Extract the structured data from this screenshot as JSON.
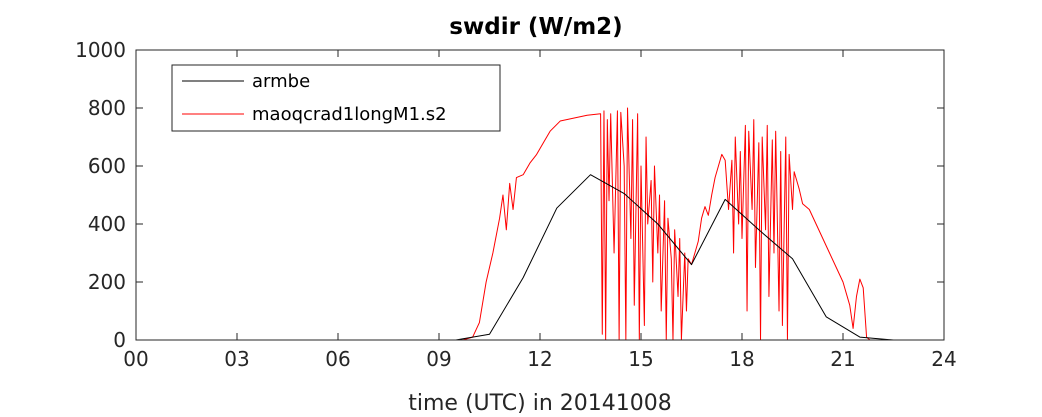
{
  "chart_data": {
    "type": "line",
    "title": "swdir  (W/m2)",
    "xlabel": "time (UTC) in 20141008",
    "ylabel": "",
    "xlim": [
      0,
      24
    ],
    "ylim": [
      0,
      1000
    ],
    "xticks": [
      0,
      3,
      6,
      9,
      12,
      15,
      18,
      21,
      24
    ],
    "xtick_labels": [
      "00",
      "03",
      "06",
      "09",
      "12",
      "15",
      "18",
      "21",
      "24"
    ],
    "yticks": [
      0,
      200,
      400,
      600,
      800,
      1000
    ],
    "ytick_labels": [
      "0",
      "200",
      "400",
      "600",
      "800",
      "1000"
    ],
    "grid": false,
    "legend": "top-left",
    "series": [
      {
        "name": "armbe",
        "color": "#000000",
        "x": [
          0,
          9.5,
          10.5,
          11.5,
          12.5,
          13.5,
          14.5,
          15.5,
          16.5,
          17.5,
          18.5,
          19.5,
          20.5,
          21.5,
          22.5,
          24
        ],
        "y": [
          0,
          0,
          20,
          215,
          455,
          570,
          505,
          400,
          260,
          485,
          380,
          280,
          80,
          10,
          0,
          0
        ]
      },
      {
        "name": "maoqcrad1longM1.s2",
        "color": "#ff0000",
        "x": [
          0,
          9.7,
          10.0,
          10.2,
          10.4,
          10.6,
          10.8,
          10.9,
          11.0,
          11.1,
          11.2,
          11.3,
          11.5,
          11.7,
          11.9,
          12.1,
          12.3,
          12.6,
          13.0,
          13.4,
          13.8,
          13.85,
          13.9,
          13.95,
          14.0,
          14.05,
          14.1,
          14.2,
          14.3,
          14.35,
          14.4,
          14.5,
          14.55,
          14.6,
          14.7,
          14.75,
          14.8,
          14.9,
          14.95,
          15.0,
          15.1,
          15.15,
          15.2,
          15.3,
          15.35,
          15.4,
          15.5,
          15.55,
          15.6,
          15.7,
          15.75,
          15.8,
          15.9,
          15.95,
          16.0,
          16.1,
          16.15,
          16.2,
          16.3,
          16.35,
          16.4,
          16.5,
          16.6,
          16.7,
          16.8,
          16.9,
          17.0,
          17.1,
          17.2,
          17.3,
          17.4,
          17.5,
          17.6,
          17.7,
          17.75,
          17.8,
          17.9,
          17.95,
          18.0,
          18.1,
          18.15,
          18.2,
          18.3,
          18.35,
          18.4,
          18.5,
          18.55,
          18.6,
          18.7,
          18.75,
          18.8,
          18.9,
          18.95,
          19.0,
          19.1,
          19.15,
          19.2,
          19.3,
          19.35,
          19.4,
          19.5,
          19.55,
          19.6,
          19.7,
          19.8,
          20.0,
          20.2,
          20.4,
          20.6,
          20.8,
          21.0,
          21.2,
          21.3,
          21.4,
          21.5,
          21.6,
          21.7,
          21.8,
          22.0,
          24
        ],
        "y": [
          0,
          0,
          10,
          60,
          200,
          300,
          420,
          500,
          380,
          540,
          450,
          560,
          570,
          610,
          640,
          680,
          720,
          755,
          765,
          775,
          780,
          20,
          790,
          0,
          760,
          480,
          780,
          300,
          790,
          0,
          785,
          600,
          0,
          800,
          350,
          760,
          120,
          780,
          0,
          600,
          50,
          700,
          400,
          550,
          200,
          600,
          300,
          500,
          100,
          480,
          0,
          420,
          280,
          0,
          380,
          150,
          350,
          0,
          300,
          100,
          280,
          260,
          300,
          340,
          420,
          460,
          430,
          500,
          560,
          600,
          640,
          620,
          450,
          620,
          300,
          700,
          400,
          650,
          350,
          740,
          100,
          720,
          450,
          760,
          250,
          680,
          0,
          700,
          380,
          740,
          150,
          690,
          300,
          720,
          100,
          650,
          50,
          700,
          0,
          640,
          450,
          580,
          560,
          520,
          470,
          450,
          400,
          350,
          300,
          250,
          200,
          120,
          40,
          150,
          210,
          180,
          10,
          0,
          0,
          0
        ]
      }
    ]
  }
}
